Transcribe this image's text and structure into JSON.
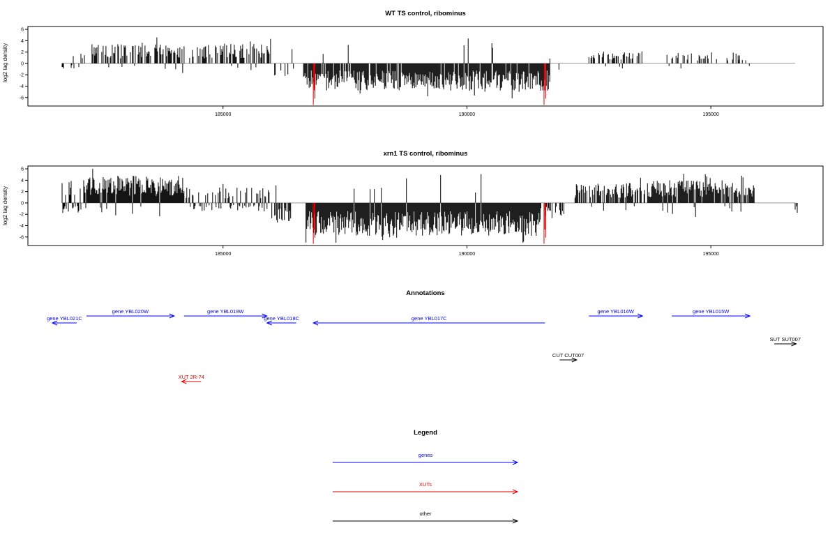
{
  "chart_data": [
    {
      "type": "bar",
      "title": "WT TS control, ribominus",
      "ylabel": "log2 tag density",
      "xlim": [
        181000,
        197300
      ],
      "ylim": [
        -7.5,
        6.5
      ],
      "y_ticks": [
        -6,
        -4,
        -2,
        0,
        2,
        4,
        6
      ],
      "x_ticks": [
        185000,
        190000,
        195000
      ],
      "x_tick_labels": [
        "185000",
        "190000",
        "195000"
      ],
      "colors": {
        "bars": "#000000",
        "highlight": "#e00000",
        "baseline": "#999999"
      },
      "highlights": [
        {
          "x": 186850,
          "y": -7.3
        },
        {
          "x": 191580,
          "y": -7.3
        }
      ],
      "segments": [
        {
          "x0": 181700,
          "x1": 182300,
          "mode": "mixed",
          "amp": 1.8,
          "density": 0.25
        },
        {
          "x0": 182300,
          "x1": 186000,
          "mode": "pos",
          "amp": 3.5,
          "density": 0.5
        },
        {
          "x0": 186000,
          "x1": 186450,
          "mode": "neg",
          "amp": 2.6,
          "density": 0.5
        },
        {
          "x0": 186650,
          "x1": 191700,
          "mode": "neg",
          "amp": 4.8,
          "density": 0.9
        },
        {
          "x0": 191700,
          "x1": 191900,
          "mode": "neg",
          "amp": 1.2,
          "density": 0.3
        },
        {
          "x0": 192500,
          "x1": 193600,
          "mode": "pos",
          "amp": 2.2,
          "density": 0.45
        },
        {
          "x0": 194100,
          "x1": 195800,
          "mode": "pos",
          "amp": 2.0,
          "density": 0.35
        }
      ]
    },
    {
      "type": "bar",
      "title": "xrn1 TS control, ribominus",
      "ylabel": "log2 tag density",
      "xlim": [
        181000,
        197300
      ],
      "ylim": [
        -7.5,
        6.5
      ],
      "y_ticks": [
        -6,
        -4,
        -2,
        0,
        2,
        4,
        6
      ],
      "x_ticks": [
        185000,
        190000,
        195000
      ],
      "x_tick_labels": [
        "185000",
        "190000",
        "195000"
      ],
      "colors": {
        "bars": "#000000",
        "highlight": "#e00000",
        "baseline": "#999999"
      },
      "highlights": [
        {
          "x": 186850,
          "y": -7.2
        },
        {
          "x": 191580,
          "y": -7.2
        }
      ],
      "segments": [
        {
          "x0": 181700,
          "x1": 182200,
          "mode": "mixed",
          "amp": 4.0,
          "density": 0.7
        },
        {
          "x0": 182200,
          "x1": 184200,
          "mode": "pos",
          "amp": 4.8,
          "density": 1.0
        },
        {
          "x0": 184200,
          "x1": 186000,
          "mode": "mixed",
          "amp": 3.0,
          "density": 0.6
        },
        {
          "x0": 186000,
          "x1": 186400,
          "mode": "neg",
          "amp": 3.5,
          "density": 0.7
        },
        {
          "x0": 186700,
          "x1": 191500,
          "mode": "neg",
          "amp": 5.8,
          "density": 1.0
        },
        {
          "x0": 191500,
          "x1": 192000,
          "mode": "neg",
          "amp": 2.5,
          "density": 0.6
        },
        {
          "x0": 192200,
          "x1": 193800,
          "mode": "pos",
          "amp": 3.6,
          "density": 0.7
        },
        {
          "x0": 193800,
          "x1": 195900,
          "mode": "pos",
          "amp": 4.0,
          "density": 0.85
        },
        {
          "x0": 196600,
          "x1": 196800,
          "mode": "neg",
          "amp": 1.8,
          "density": 0.3
        }
      ]
    }
  ],
  "annotations": {
    "title": "Annotations",
    "xlim": [
      181000,
      197300
    ],
    "colors": {
      "gene": "#0000ff",
      "xut": "#e00000",
      "other": "#000000"
    },
    "features": [
      {
        "label": "gene YBL021C",
        "x0": 181500,
        "x1": 182000,
        "dir": "left",
        "kind": "gene",
        "row": 1
      },
      {
        "label": "gene YBL020W",
        "x0": 182200,
        "x1": 184000,
        "dir": "right",
        "kind": "gene",
        "row": 0
      },
      {
        "label": "gene YBL019W",
        "x0": 184200,
        "x1": 185900,
        "dir": "right",
        "kind": "gene",
        "row": 0
      },
      {
        "label": "gene YBL018C",
        "x0": 185900,
        "x1": 186500,
        "dir": "left",
        "kind": "gene",
        "row": 1
      },
      {
        "label": "gene YBL017C",
        "x0": 186850,
        "x1": 191600,
        "dir": "left",
        "kind": "gene",
        "row": 1
      },
      {
        "label": "gene YBL016W",
        "x0": 192500,
        "x1": 193600,
        "dir": "right",
        "kind": "gene",
        "row": 0
      },
      {
        "label": "gene YBL015W",
        "x0": 194200,
        "x1": 195800,
        "dir": "right",
        "kind": "gene",
        "row": 0
      },
      {
        "label": "SUT SUT007",
        "x0": 196300,
        "x1": 196750,
        "dir": "right",
        "kind": "other",
        "row": 3
      },
      {
        "label": "CUT CUT007",
        "x0": 191900,
        "x1": 192250,
        "dir": "right",
        "kind": "other",
        "row": 4
      },
      {
        "label": "XUT 2R-74",
        "x0": 184150,
        "x1": 184550,
        "dir": "left",
        "kind": "xut",
        "row": 5
      }
    ]
  },
  "legend": {
    "title": "Legend",
    "items": [
      {
        "label": "genes",
        "kind": "gene"
      },
      {
        "label": "XUTs",
        "kind": "xut"
      },
      {
        "label": "other",
        "kind": "other"
      }
    ]
  }
}
